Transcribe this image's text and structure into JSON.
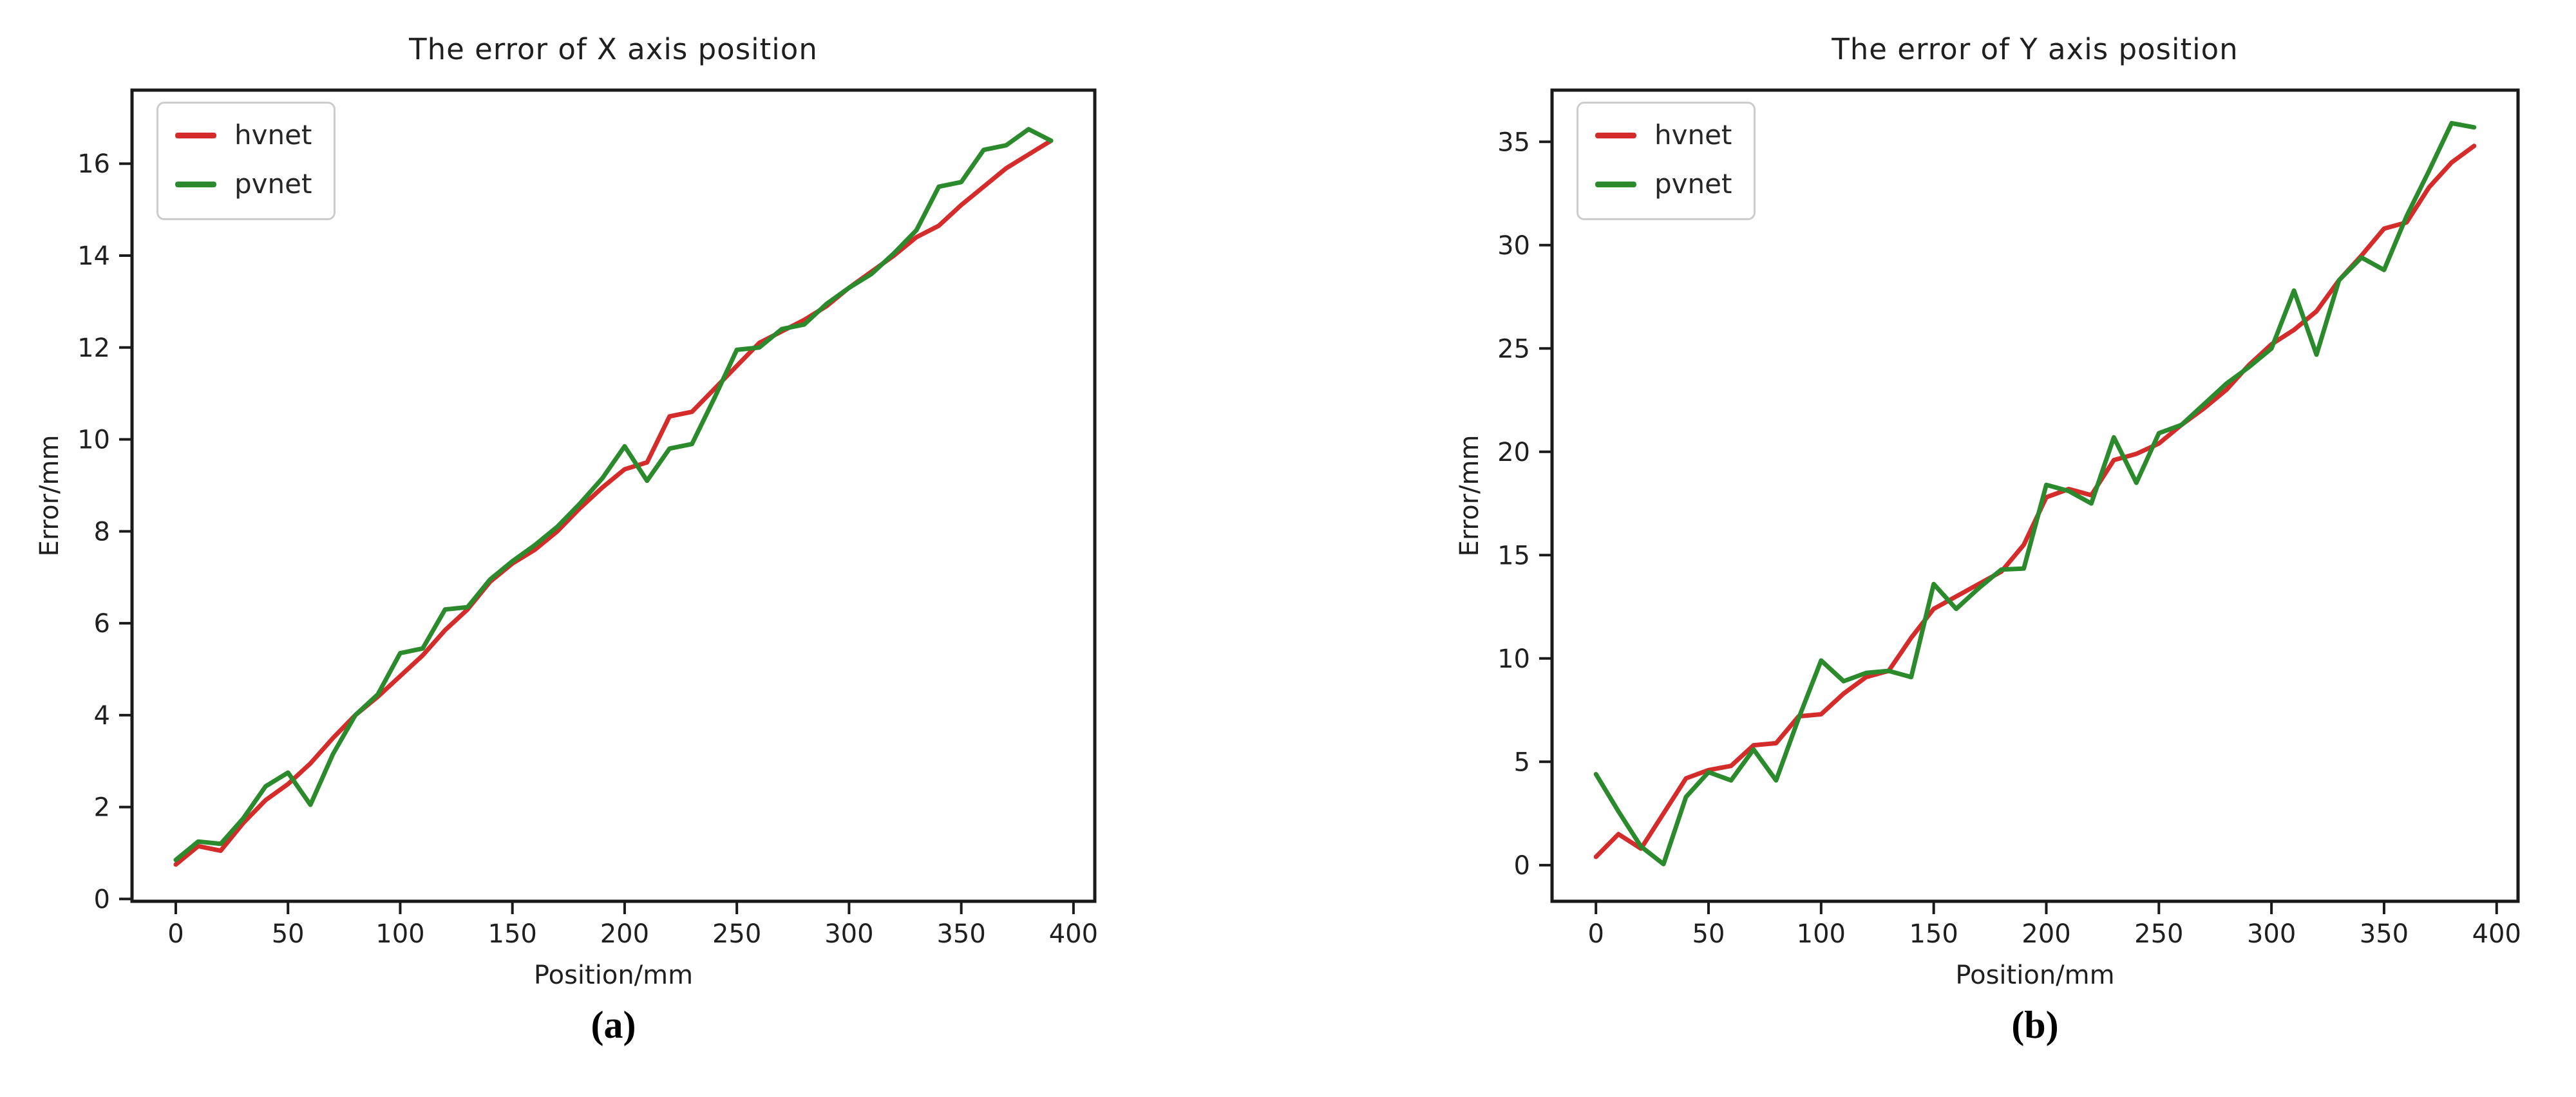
{
  "page": {
    "background": "#ffffff"
  },
  "colors": {
    "hvnet": "#d42b2b",
    "pvnet": "#2b8a2b",
    "axis": "#1a1a1a",
    "text": "#1f1f1f",
    "legend_border": "#cccccc"
  },
  "chart_data": [
    {
      "type": "line",
      "title": "The error of X axis position",
      "xlabel": "Position/mm",
      "ylabel": "Error/mm",
      "caption": "(a)",
      "grid": false,
      "legend_position": "upper left",
      "xlim": [
        -19.5,
        409.5
      ],
      "ylim": [
        -0.05,
        17.6
      ],
      "xticks": [
        0,
        50,
        100,
        150,
        200,
        250,
        300,
        350,
        400
      ],
      "yticks": [
        0,
        2,
        4,
        6,
        8,
        10,
        12,
        14,
        16
      ],
      "x": [
        0,
        10,
        20,
        30,
        40,
        50,
        60,
        70,
        80,
        90,
        100,
        110,
        120,
        130,
        140,
        150,
        160,
        170,
        180,
        190,
        200,
        210,
        220,
        230,
        240,
        250,
        260,
        270,
        280,
        290,
        300,
        310,
        320,
        330,
        340,
        350,
        360,
        370,
        380,
        390
      ],
      "series": [
        {
          "name": "hvnet",
          "color": "#d42b2b",
          "values": [
            0.75,
            1.15,
            1.05,
            1.65,
            2.15,
            2.5,
            2.95,
            3.5,
            4.0,
            4.4,
            4.85,
            5.3,
            5.85,
            6.3,
            6.9,
            7.3,
            7.6,
            8.0,
            8.5,
            8.95,
            9.35,
            9.5,
            10.5,
            10.6,
            11.1,
            11.6,
            12.1,
            12.35,
            12.6,
            12.9,
            13.3,
            13.65,
            14.0,
            14.4,
            14.65,
            15.1,
            15.5,
            15.9,
            16.2,
            16.5
          ]
        },
        {
          "name": "pvnet",
          "color": "#2b8a2b",
          "values": [
            0.85,
            1.25,
            1.2,
            1.75,
            2.45,
            2.75,
            2.05,
            3.15,
            4.0,
            4.45,
            5.35,
            5.45,
            6.3,
            6.35,
            6.95,
            7.35,
            7.7,
            8.1,
            8.6,
            9.15,
            9.85,
            9.1,
            9.8,
            9.9,
            10.9,
            11.95,
            12.0,
            12.4,
            12.5,
            12.95,
            13.3,
            13.6,
            14.05,
            14.55,
            15.5,
            15.6,
            16.3,
            16.4,
            16.75,
            16.5
          ]
        }
      ]
    },
    {
      "type": "line",
      "title": "The error of Y axis position",
      "xlabel": "Position/mm",
      "ylabel": "Error/mm",
      "caption": "(b)",
      "grid": false,
      "legend_position": "upper left",
      "xlim": [
        -19.5,
        409.5
      ],
      "ylim": [
        -1.75,
        37.5
      ],
      "xticks": [
        0,
        50,
        100,
        150,
        200,
        250,
        300,
        350,
        400
      ],
      "yticks": [
        0,
        5,
        10,
        15,
        20,
        25,
        30,
        35
      ],
      "x": [
        0,
        10,
        20,
        30,
        40,
        50,
        60,
        70,
        80,
        90,
        100,
        110,
        120,
        130,
        140,
        150,
        160,
        170,
        180,
        190,
        200,
        210,
        220,
        230,
        240,
        250,
        260,
        270,
        280,
        290,
        300,
        310,
        320,
        330,
        340,
        350,
        360,
        370,
        380,
        390
      ],
      "series": [
        {
          "name": "hvnet",
          "color": "#d42b2b",
          "values": [
            0.4,
            1.5,
            0.8,
            2.5,
            4.2,
            4.6,
            4.8,
            5.8,
            5.9,
            7.2,
            7.3,
            8.3,
            9.1,
            9.4,
            11.0,
            12.4,
            13.0,
            13.6,
            14.2,
            15.5,
            17.8,
            18.2,
            17.9,
            19.6,
            19.9,
            20.4,
            21.3,
            22.1,
            23.0,
            24.2,
            25.2,
            25.9,
            26.8,
            28.3,
            29.5,
            30.8,
            31.1,
            32.8,
            34.0,
            34.8
          ]
        },
        {
          "name": "pvnet",
          "color": "#2b8a2b",
          "values": [
            4.4,
            2.6,
            0.9,
            0.05,
            3.3,
            4.5,
            4.1,
            5.6,
            4.1,
            7.1,
            9.9,
            8.9,
            9.3,
            9.4,
            9.1,
            13.6,
            12.4,
            13.4,
            14.3,
            14.35,
            18.4,
            18.1,
            17.5,
            20.7,
            18.5,
            20.9,
            21.3,
            22.3,
            23.3,
            24.1,
            25.0,
            27.8,
            24.7,
            28.3,
            29.4,
            28.8,
            31.4,
            33.6,
            35.9,
            35.7
          ]
        }
      ]
    }
  ]
}
